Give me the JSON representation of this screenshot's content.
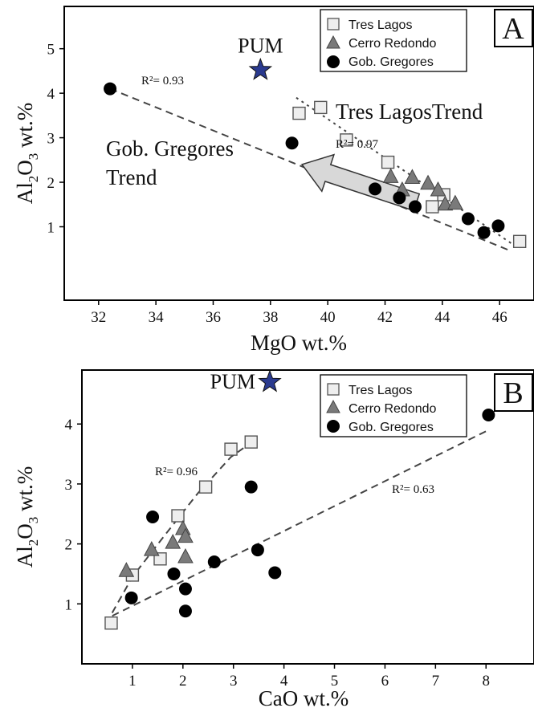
{
  "chart_data": [
    {
      "type": "scatter",
      "panel_label": "A",
      "xlabel": "MgO wt.%",
      "ylabel_parts": [
        "Al",
        "2",
        "O",
        "3",
        " wt.%"
      ],
      "xlim": [
        30.8,
        47.2
      ],
      "ylim": [
        -0.65,
        5.95
      ],
      "xticks": [
        32,
        34,
        36,
        38,
        40,
        42,
        44,
        46
      ],
      "yticks": [
        1,
        2,
        3,
        4,
        5
      ],
      "grid": false,
      "legend_position": "top-right",
      "legend": [
        "Tres Lagos",
        "Cerro Redondo",
        "Gob. Gregores"
      ],
      "series": [
        {
          "name": "Tres Lagos",
          "marker": "square",
          "fill": "#eeeeee",
          "points": [
            [
              39.0,
              3.55
            ],
            [
              39.75,
              3.68
            ],
            [
              40.65,
              2.95
            ],
            [
              42.1,
              2.45
            ],
            [
              43.65,
              1.45
            ],
            [
              44.05,
              1.72
            ],
            [
              46.7,
              0.67
            ]
          ]
        },
        {
          "name": "Cerro Redondo",
          "marker": "triangle",
          "fill": "#7a7a7a",
          "points": [
            [
              42.2,
              2.12
            ],
            [
              42.95,
              2.1
            ],
            [
              42.6,
              1.82
            ],
            [
              43.5,
              1.97
            ],
            [
              43.85,
              1.82
            ],
            [
              44.1,
              1.5
            ],
            [
              44.45,
              1.52
            ]
          ]
        },
        {
          "name": "Gob. Gregores",
          "marker": "circle",
          "fill": "#000000",
          "points": [
            [
              32.4,
              4.1
            ],
            [
              38.75,
              2.88
            ],
            [
              41.65,
              1.85
            ],
            [
              42.5,
              1.65
            ],
            [
              43.05,
              1.45
            ],
            [
              44.9,
              1.18
            ],
            [
              45.95,
              1.02
            ],
            [
              45.45,
              0.87
            ]
          ]
        }
      ],
      "reference_point": {
        "label": "PUM",
        "x": 37.65,
        "y": 4.52,
        "color": "#2a3a8f"
      },
      "trendlines": [
        {
          "for": "Gob. Gregores",
          "r2": "R²= 0.93",
          "from": [
            32.4,
            4.1
          ],
          "to": [
            46.3,
            0.48
          ]
        },
        {
          "for": "Tres Lagos",
          "r2": "R²= 0.97",
          "from": [
            38.9,
            3.9
          ],
          "to": [
            46.7,
            0.5
          ]
        }
      ],
      "annotations": [
        "Tres LagosTrend",
        "Gob. Gregores",
        "Trend"
      ],
      "arrow": {
        "from": [
          43.1,
          1.55
        ],
        "to": [
          39.1,
          2.4
        ],
        "fill": "#d8d8d8"
      }
    },
    {
      "type": "scatter",
      "panel_label": "B",
      "xlabel": "CaO wt.%",
      "ylabel_parts": [
        "Al",
        "2",
        "O",
        "3",
        " wt.%"
      ],
      "xlim": [
        0.0,
        8.95
      ],
      "ylim": [
        0.0,
        4.9
      ],
      "xticks": [
        1,
        2,
        3,
        4,
        5,
        6,
        7,
        8
      ],
      "yticks": [
        1,
        2,
        3,
        4
      ],
      "grid": false,
      "legend_position": "top-right",
      "legend": [
        "Tres Lagos",
        "Cerro Redondo",
        "Gob. Gregores"
      ],
      "series": [
        {
          "name": "Tres Lagos",
          "marker": "square",
          "fill": "#eeeeee",
          "points": [
            [
              0.58,
              0.68
            ],
            [
              1.0,
              1.48
            ],
            [
              1.55,
              1.75
            ],
            [
              1.9,
              2.47
            ],
            [
              2.45,
              2.95
            ],
            [
              2.95,
              3.58
            ],
            [
              3.35,
              3.7
            ]
          ]
        },
        {
          "name": "Cerro Redondo",
          "marker": "triangle",
          "fill": "#7a7a7a",
          "points": [
            [
              0.88,
              1.55
            ],
            [
              1.38,
              1.9
            ],
            [
              1.8,
              2.02
            ],
            [
              2.0,
              2.25
            ],
            [
              2.05,
              2.12
            ],
            [
              2.05,
              1.78
            ]
          ]
        },
        {
          "name": "Gob. Gregores",
          "marker": "circle",
          "fill": "#000000",
          "points": [
            [
              0.98,
              1.1
            ],
            [
              1.4,
              2.45
            ],
            [
              1.82,
              1.5
            ],
            [
              2.05,
              1.25
            ],
            [
              2.05,
              0.88
            ],
            [
              2.62,
              1.7
            ],
            [
              3.35,
              2.95
            ],
            [
              3.48,
              1.9
            ],
            [
              3.82,
              1.52
            ],
            [
              8.05,
              4.15
            ]
          ]
        }
      ],
      "reference_point": {
        "label": "PUM",
        "x": 3.72,
        "y": 4.7,
        "color": "#2a3a8f"
      },
      "trendlines": [
        {
          "for": "Tres Lagos",
          "r2": "R²= 0.96",
          "curve": [
            [
              0.6,
              0.85
            ],
            [
              1.0,
              1.45
            ],
            [
              1.6,
              2.1
            ],
            [
              2.3,
              2.85
            ],
            [
              2.95,
              3.45
            ],
            [
              3.4,
              3.72
            ]
          ]
        },
        {
          "for": "Gob. Gregores",
          "r2": "R²= 0.63",
          "from": [
            0.6,
            0.8
          ],
          "to": [
            8.05,
            3.9
          ]
        }
      ]
    }
  ]
}
